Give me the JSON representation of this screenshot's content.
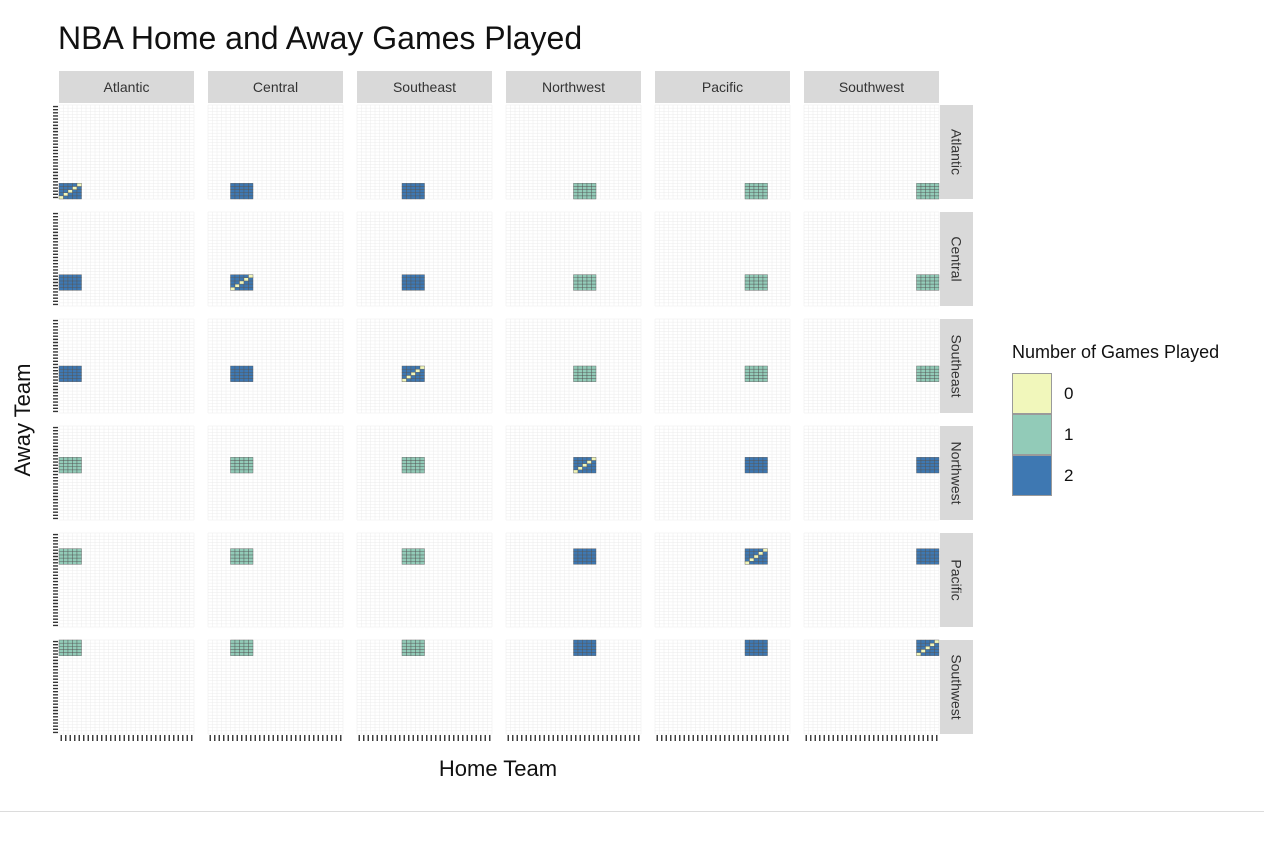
{
  "chart_data": {
    "type": "heatmap",
    "title": "NBA Home and Away Games Played",
    "xlabel": "Home Team",
    "ylabel": "Away Team",
    "column_facets": [
      "Atlantic",
      "Central",
      "Southeast",
      "Northwest",
      "Pacific",
      "Southwest"
    ],
    "row_facets": [
      "Atlantic",
      "Central",
      "Southeast",
      "Northwest",
      "Pacific",
      "Southwest"
    ],
    "teams_per_division": 5,
    "games_within_division": 2,
    "games_same_conference": 2,
    "games_other_conference": 1,
    "self_pairing_value": 0,
    "legend": {
      "title": "Number of Games Played",
      "position": "right",
      "levels": [
        {
          "label": "0",
          "color": "#f1f7bb"
        },
        {
          "label": "1",
          "color": "#92cbb8"
        },
        {
          "label": "2",
          "color": "#3e78b2"
        }
      ]
    },
    "grid": true
  }
}
